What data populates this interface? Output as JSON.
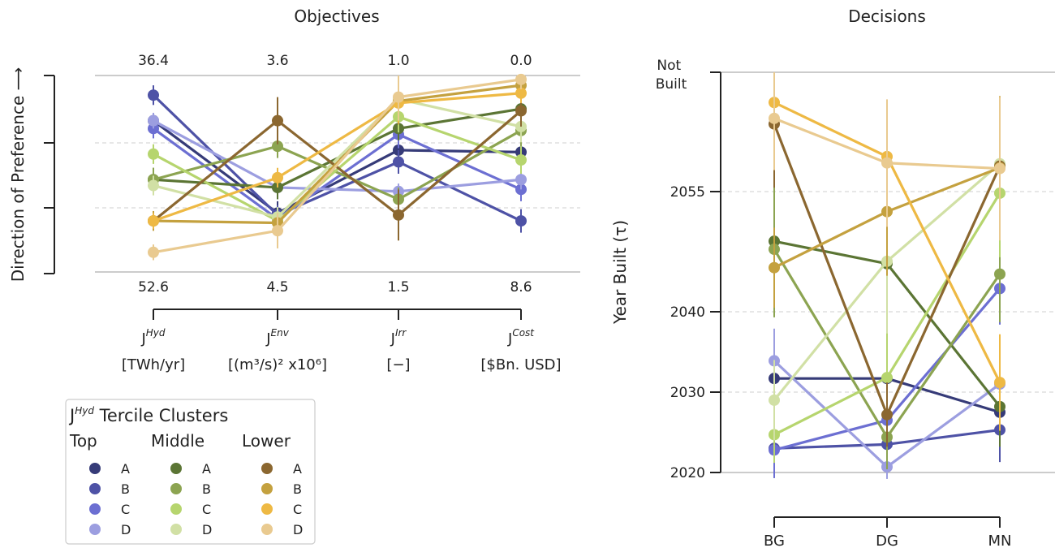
{
  "colors": {
    "Top": {
      "A": "#363b78",
      "B": "#4e52a6",
      "C": "#6c6fd2",
      "D": "#9c9ee0"
    },
    "Middle": {
      "A": "#5b7534",
      "B": "#8ca451",
      "C": "#b6d56e",
      "D": "#d1e0a5"
    },
    "Lower": {
      "A": "#8b6730",
      "B": "#c4a13f",
      "C": "#eeb944",
      "D": "#e9ca90"
    }
  },
  "chart_data": [
    {
      "type": "line",
      "title": "Objectives",
      "ylabel": "Direction of Preference ⟶",
      "axes": [
        {
          "name": "J",
          "sup": "Hyd",
          "unit": "[TWh/yr]",
          "top_label": "36.4",
          "bottom_label": "52.6"
        },
        {
          "name": "J",
          "sup": "Env",
          "unit": "[(m³/s)² x10⁶]",
          "top_label": "3.6",
          "bottom_label": "4.5"
        },
        {
          "name": "J",
          "sup": "Irr",
          "unit": "[−]",
          "top_label": "1.0",
          "bottom_label": "1.5"
        },
        {
          "name": "J",
          "sup": "Cost",
          "unit": "[$Bn. USD]",
          "top_label": "0.0",
          "bottom_label": "8.6"
        }
      ],
      "y_range": [
        0,
        1
      ],
      "grid": "dashed horizontal at 1/3 and 2/3",
      "series": [
        {
          "group": "Top",
          "cluster": "A",
          "values": [
            0.77,
            0.3,
            0.62,
            0.61
          ],
          "err": [
            0.04,
            0.06,
            0.06,
            0.05
          ]
        },
        {
          "group": "Top",
          "cluster": "B",
          "values": [
            0.9,
            0.29,
            0.56,
            0.26
          ],
          "err": [
            0.05,
            0.05,
            0.06,
            0.06
          ]
        },
        {
          "group": "Top",
          "cluster": "C",
          "values": [
            0.73,
            0.27,
            0.7,
            0.42
          ],
          "err": [
            0.05,
            0.06,
            0.07,
            0.06
          ]
        },
        {
          "group": "Top",
          "cluster": "D",
          "values": [
            0.77,
            0.43,
            0.41,
            0.47
          ],
          "err": [
            0.04,
            0.05,
            0.04,
            0.05
          ]
        },
        {
          "group": "Middle",
          "cluster": "A",
          "values": [
            0.47,
            0.43,
            0.73,
            0.83
          ],
          "err": [
            0.06,
            0.06,
            0.06,
            0.06
          ]
        },
        {
          "group": "Middle",
          "cluster": "B",
          "values": [
            0.47,
            0.64,
            0.37,
            0.72
          ],
          "err": [
            0.06,
            0.06,
            0.06,
            0.08
          ]
        },
        {
          "group": "Middle",
          "cluster": "C",
          "values": [
            0.6,
            0.26,
            0.79,
            0.57
          ],
          "err": [
            0.05,
            0.05,
            0.08,
            0.07
          ]
        },
        {
          "group": "Middle",
          "cluster": "D",
          "values": [
            0.44,
            0.28,
            0.88,
            0.74
          ],
          "err": [
            0.05,
            0.05,
            0.1,
            0.08
          ]
        },
        {
          "group": "Lower",
          "cluster": "A",
          "values": [
            0.26,
            0.77,
            0.29,
            0.82
          ],
          "err": [
            0.05,
            0.12,
            0.13,
            0.08
          ]
        },
        {
          "group": "Lower",
          "cluster": "B",
          "values": [
            0.26,
            0.25,
            0.87,
            0.95
          ],
          "err": [
            0.05,
            0.05,
            0.12,
            0.06
          ]
        },
        {
          "group": "Lower",
          "cluster": "C",
          "values": [
            0.26,
            0.48,
            0.86,
            0.91
          ],
          "err": [
            0.04,
            0.05,
            0.1,
            0.05
          ]
        },
        {
          "group": "Lower",
          "cluster": "D",
          "values": [
            0.1,
            0.21,
            0.89,
            0.98
          ],
          "err": [
            0.04,
            0.09,
            0.12,
            0.05
          ]
        }
      ]
    },
    {
      "type": "line",
      "title": "Decisions",
      "ylabel": "Year Built (τ)",
      "categories": [
        "BG",
        "DG",
        "MN"
      ],
      "yticks": [
        2020,
        2030,
        2040,
        2055
      ],
      "ytick_labels": [
        "2020",
        "2030",
        "2040",
        "2055"
      ],
      "top_label": "Not Built",
      "ylim": [
        2020,
        2070
      ],
      "grid": "dashed horizontal at 2030, 2040, 2055",
      "series": [
        {
          "group": "Top",
          "cluster": "A",
          "values": [
            2031.7,
            2031.7,
            2027.5
          ],
          "err": [
            4.0,
            3.5,
            4.0
          ]
        },
        {
          "group": "Top",
          "cluster": "B",
          "values": [
            2023.0,
            2023.5,
            2025.3
          ],
          "err": [
            3.5,
            4.0,
            4.0
          ]
        },
        {
          "group": "Top",
          "cluster": "C",
          "values": [
            2022.8,
            2026.5,
            2042.9
          ],
          "err": [
            3.5,
            5.0,
            4.5
          ]
        },
        {
          "group": "Top",
          "cluster": "D",
          "values": [
            2033.9,
            2020.7,
            2031.0
          ],
          "err": [
            4.0,
            1.5,
            4.0
          ]
        },
        {
          "group": "Middle",
          "cluster": "A",
          "values": [
            2048.8,
            2046.0,
            2028.2
          ],
          "err": [
            8.0,
            6.0,
            5.0
          ]
        },
        {
          "group": "Middle",
          "cluster": "B",
          "values": [
            2047.8,
            2024.4,
            2044.7
          ],
          "err": [
            8.5,
            4.0,
            6.0
          ]
        },
        {
          "group": "Middle",
          "cluster": "C",
          "values": [
            2024.7,
            2031.8,
            2054.8
          ],
          "err": [
            3.5,
            8.5,
            8.0
          ]
        },
        {
          "group": "Middle",
          "cluster": "D",
          "values": [
            2029.0,
            2046.3,
            2058.5
          ],
          "err": [
            5.0,
            9.0,
            7.0
          ]
        },
        {
          "group": "Lower",
          "cluster": "A",
          "values": [
            2063.5,
            2027.2,
            2058.2
          ],
          "err": [
            8.0,
            4.0,
            8.0
          ]
        },
        {
          "group": "Lower",
          "cluster": "B",
          "values": [
            2045.5,
            2052.5,
            2058.0
          ],
          "err": [
            5.0,
            8.0,
            9.0
          ]
        },
        {
          "group": "Lower",
          "cluster": "C",
          "values": [
            2066.2,
            2059.4,
            2031.2
          ],
          "err": [
            6.5,
            7.0,
            6.0
          ]
        },
        {
          "group": "Lower",
          "cluster": "D",
          "values": [
            2064.2,
            2058.6,
            2057.9
          ],
          "err": [
            6.5,
            8.0,
            9.0
          ]
        }
      ]
    }
  ],
  "legend": {
    "title_main": "J",
    "title_sup": "Hyd",
    "title_rest": " Tercile Clusters",
    "groups": [
      "Top",
      "Middle",
      "Lower"
    ],
    "clusters": [
      "A",
      "B",
      "C",
      "D"
    ]
  }
}
